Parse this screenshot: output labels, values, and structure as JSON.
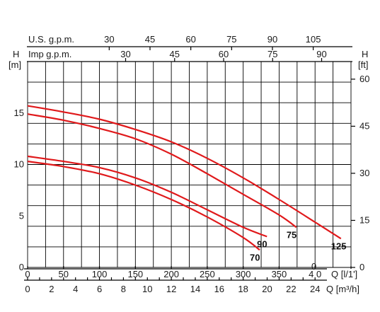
{
  "chart_data": {
    "type": "line",
    "title": "",
    "grid": true,
    "left_axis": {
      "label_top": "H",
      "label_unit": "[m]",
      "ticks": [
        "0",
        "5",
        "10",
        "15"
      ],
      "ylim": [
        0,
        20
      ]
    },
    "right_axis": {
      "label_top": "H",
      "label_unit": "[ft]",
      "ticks": [
        "0",
        "15",
        "30",
        "45",
        "60"
      ]
    },
    "top_axis_usgpm": {
      "label": "U.S.  g.p.m.",
      "ticks": [
        "30",
        "45",
        "60",
        "75",
        "90",
        "105"
      ]
    },
    "top_axis_imp": {
      "label": "Imp  g.p.m.",
      "ticks": [
        "30",
        "45",
        "60",
        "75",
        "90"
      ]
    },
    "bottom_axis_lmin": {
      "label": "Q [l/1']",
      "ticks": [
        "0",
        "50",
        "100",
        "150",
        "200",
        "250",
        "300",
        "350",
        "4 0"
      ],
      "extra_mark": "0"
    },
    "bottom_axis_m3h": {
      "label": "Q [m³/h]",
      "ticks": [
        "0",
        "2",
        "4",
        "6",
        "8",
        "10",
        "12",
        "14",
        "16",
        "18",
        "20",
        "22",
        "24"
      ]
    },
    "xlim": [
      0,
      450
    ],
    "series": [
      {
        "name": "125",
        "x": [
          0,
          50,
          100,
          150,
          200,
          250,
          300,
          350,
          400,
          436
        ],
        "y": [
          15.7,
          15.1,
          14.4,
          13.4,
          12.2,
          10.6,
          8.7,
          6.6,
          4.4,
          2.8
        ]
      },
      {
        "name": "75",
        "x": [
          0,
          50,
          100,
          150,
          200,
          250,
          300,
          350,
          374
        ],
        "y": [
          14.9,
          14.3,
          13.5,
          12.5,
          11.0,
          9.1,
          7.1,
          5.1,
          3.9
        ]
      },
      {
        "name": "90",
        "x": [
          0,
          50,
          100,
          150,
          200,
          250,
          300,
          333
        ],
        "y": [
          10.8,
          10.3,
          9.7,
          8.7,
          7.3,
          5.6,
          3.9,
          3.0
        ]
      },
      {
        "name": "70",
        "x": [
          0,
          50,
          100,
          150,
          200,
          250,
          300,
          323
        ],
        "y": [
          10.3,
          9.8,
          9.1,
          8.0,
          6.6,
          4.9,
          2.9,
          1.7
        ]
      }
    ]
  }
}
